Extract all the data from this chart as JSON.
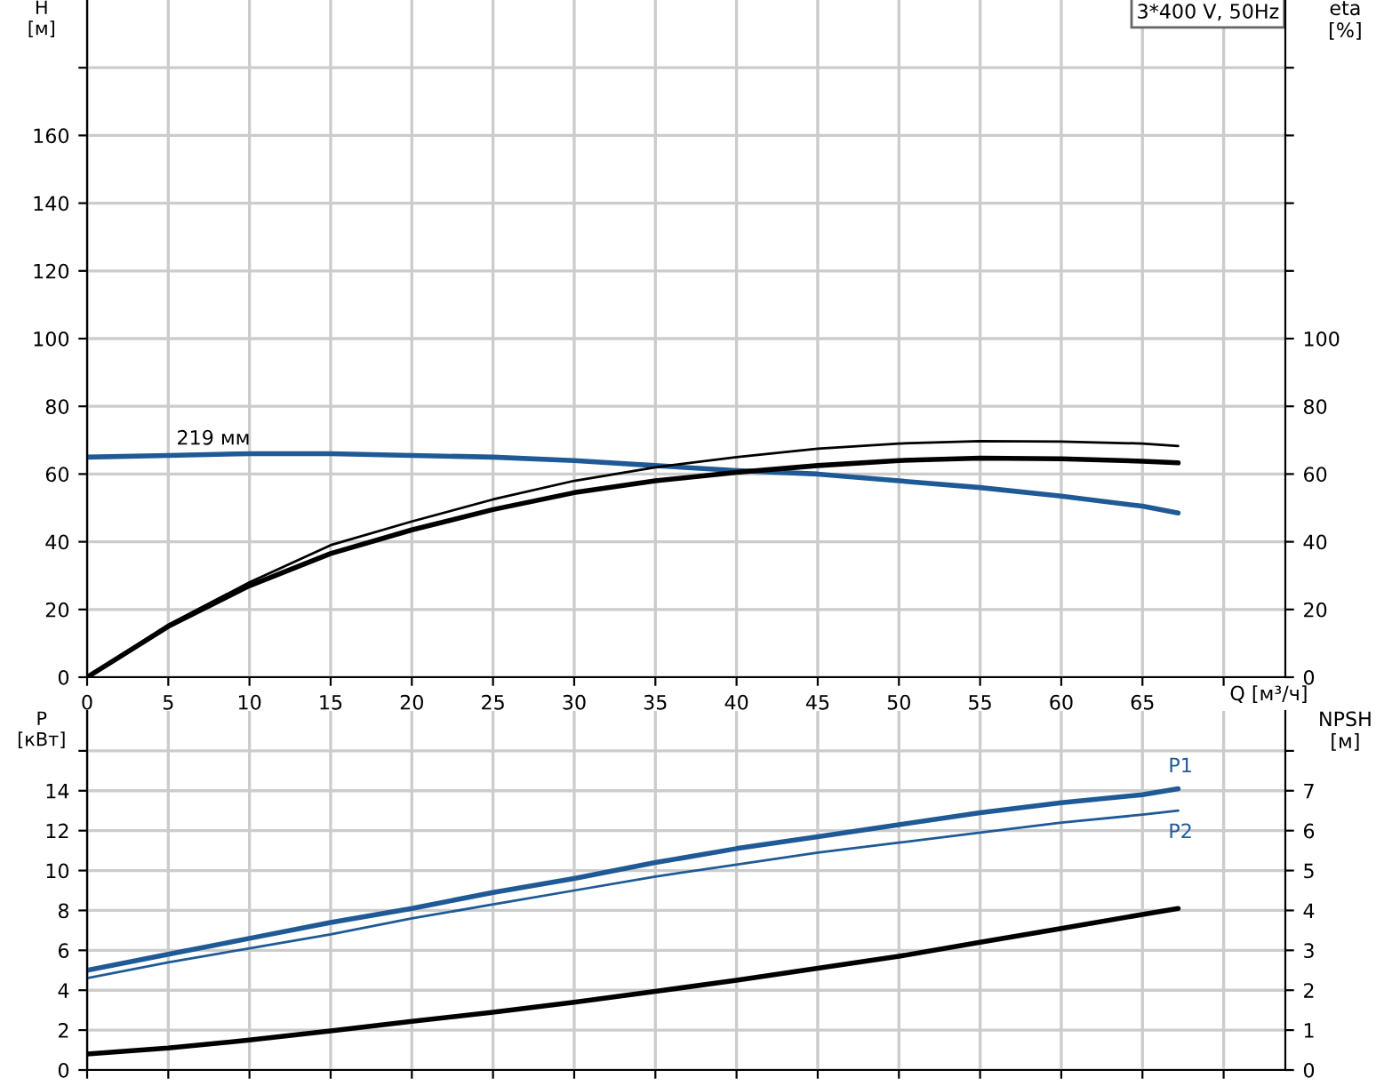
{
  "chart_data": [
    {
      "type": "line",
      "ylabel": "H\n[м]",
      "y2label": "eta\n[%]",
      "xlabel": "Q [м³/ч]",
      "xlim": [
        0,
        73.8
      ],
      "xticks": [
        0,
        5,
        10,
        15,
        20,
        25,
        30,
        35,
        40,
        45,
        50,
        55,
        60,
        65,
        {
          "value": 70,
          "label": null
        }
      ],
      "ylim": [
        0,
        200
      ],
      "yticks": [
        0,
        20,
        40,
        60,
        80,
        100,
        120,
        140,
        160,
        {
          "value": 180,
          "label": null
        }
      ],
      "y2lim": [
        0,
        200
      ],
      "y2ticks": [
        0,
        20,
        40,
        60,
        80,
        100,
        {
          "value": 120,
          "label": null
        },
        {
          "value": 140,
          "label": null
        },
        {
          "value": 160,
          "label": null
        },
        {
          "value": 180,
          "label": null
        }
      ],
      "x": [
        0,
        5,
        10,
        15,
        20,
        25,
        30,
        35,
        40,
        45,
        50,
        55,
        60,
        65,
        67.2
      ],
      "series": [
        {
          "color": "#1f5a96",
          "values": [
            65,
            65.5,
            66,
            66,
            65.5,
            65,
            64,
            62.5,
            61,
            60,
            58,
            56,
            53.5,
            50.5,
            48.5
          ]
        },
        {
          "color": "#000000",
          "axis": "y2",
          "values": [
            0,
            15.5,
            28,
            39,
            46,
            52.5,
            58,
            62,
            65,
            67.5,
            69,
            69.7,
            69.6,
            69,
            68.3
          ]
        },
        {
          "color": "#000000",
          "axis": "y2",
          "values": [
            0,
            15,
            27,
            36.5,
            43.5,
            49.5,
            54.5,
            58,
            60.5,
            62.5,
            64,
            64.7,
            64.5,
            63.8,
            63.3
          ]
        }
      ],
      "annotations": [
        {
          "text": "219 мм",
          "x": 5.5,
          "y": 66
        },
        "3*400 V, 50Hz"
      ],
      "grid": true,
      "legend": false
    },
    {
      "type": "line",
      "ylabel": "P\n[кВт]",
      "y2label": "NPSH\n[м]",
      "xlim": [
        0,
        73.8
      ],
      "xticks": [
        {
          "value": 0,
          "label": null
        },
        {
          "value": 5,
          "label": null
        },
        {
          "value": 10,
          "label": null
        },
        {
          "value": 15,
          "label": null
        },
        {
          "value": 20,
          "label": null
        },
        {
          "value": 25,
          "label": null
        },
        {
          "value": 30,
          "label": null
        },
        {
          "value": 35,
          "label": null
        },
        {
          "value": 40,
          "label": null
        },
        {
          "value": 45,
          "label": null
        },
        {
          "value": 50,
          "label": null
        },
        {
          "value": 55,
          "label": null
        },
        {
          "value": 60,
          "label": null
        },
        {
          "value": 65,
          "label": null
        },
        {
          "value": 70,
          "label": null
        }
      ],
      "ylim": [
        0,
        18
      ],
      "yticks": [
        0,
        2,
        4,
        6,
        8,
        10,
        12,
        14,
        {
          "value": 16,
          "label": null
        }
      ],
      "y2lim": [
        0,
        9
      ],
      "y2ticks": [
        0,
        1,
        2,
        3,
        4,
        5,
        6,
        7,
        {
          "value": 8,
          "label": null
        }
      ],
      "x": [
        0,
        5,
        10,
        15,
        20,
        25,
        30,
        35,
        40,
        45,
        50,
        55,
        60,
        65,
        67.2
      ],
      "series": [
        {
          "name": "P1",
          "color": "#1f5a96",
          "values": [
            5.0,
            5.8,
            6.6,
            7.4,
            8.1,
            8.9,
            9.6,
            10.4,
            11.1,
            11.7,
            12.3,
            12.9,
            13.4,
            13.8,
            14.1
          ]
        },
        {
          "name": "P2",
          "color": "#1f5a96",
          "values": [
            4.6,
            5.4,
            6.1,
            6.8,
            7.6,
            8.3,
            9.0,
            9.7,
            10.3,
            10.9,
            11.4,
            11.9,
            12.4,
            12.8,
            13.0
          ]
        },
        {
          "color": "#000000",
          "axis": "y2",
          "values": [
            0.4,
            0.55,
            0.75,
            0.98,
            1.22,
            1.45,
            1.7,
            1.97,
            2.25,
            2.55,
            2.85,
            3.2,
            3.55,
            3.9,
            4.05
          ]
        }
      ],
      "grid": true,
      "legend": false,
      "tick_labels": "y"
    }
  ]
}
